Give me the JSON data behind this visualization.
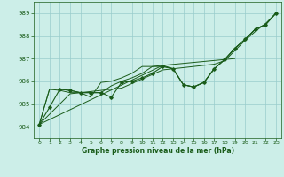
{
  "background_color": "#cceee8",
  "grid_color": "#99cccc",
  "line_color": "#1a5c1a",
  "text_color": "#1a5c1a",
  "xlabel": "Graphe pression niveau de la mer (hPa)",
  "ylim": [
    983.5,
    989.5
  ],
  "xlim": [
    -0.5,
    23.5
  ],
  "yticks": [
    984,
    985,
    986,
    987,
    988,
    989
  ],
  "xticks": [
    0,
    1,
    2,
    3,
    4,
    5,
    6,
    7,
    8,
    9,
    10,
    11,
    12,
    13,
    14,
    15,
    16,
    17,
    18,
    19,
    20,
    21,
    22,
    23
  ],
  "main_series": [
    984.1,
    984.85,
    985.65,
    985.6,
    985.5,
    985.5,
    985.5,
    985.3,
    985.95,
    986.0,
    986.15,
    986.35,
    986.65,
    986.55,
    985.85,
    985.75,
    985.95,
    986.55,
    986.95,
    987.45,
    987.85,
    988.3,
    988.5,
    989.0
  ],
  "straight_line": [
    984.1,
    984.55,
    985.0,
    985.45,
    985.5,
    985.55,
    985.6,
    985.65,
    985.7,
    985.9,
    986.1,
    986.3,
    986.5,
    986.55,
    986.6,
    986.65,
    986.7,
    986.75,
    986.9,
    987.35,
    987.8,
    988.2,
    988.55,
    989.0
  ],
  "envelope_upper": [
    984.1,
    985.65,
    985.65,
    985.6,
    985.5,
    985.5,
    985.5,
    985.8,
    986.0,
    986.15,
    986.35,
    986.65,
    986.7,
    986.55,
    985.85,
    985.75,
    985.95,
    986.55,
    986.95,
    987.45,
    987.85,
    988.3,
    988.5,
    989.0
  ],
  "envelope_lower": [
    984.1,
    985.65,
    985.6,
    985.5,
    985.5,
    985.3,
    985.95,
    986.0,
    986.15,
    986.35,
    986.65,
    986.65,
    986.65,
    986.55,
    985.85,
    985.75,
    985.95,
    986.55,
    986.95,
    987.45,
    987.85,
    988.3,
    988.5,
    989.0
  ],
  "triangle_line": [
    984.1,
    null,
    null,
    null,
    null,
    null,
    null,
    null,
    null,
    null,
    null,
    null,
    986.65,
    null,
    null,
    null,
    null,
    null,
    null,
    987.0,
    null,
    null,
    null,
    989.0
  ]
}
